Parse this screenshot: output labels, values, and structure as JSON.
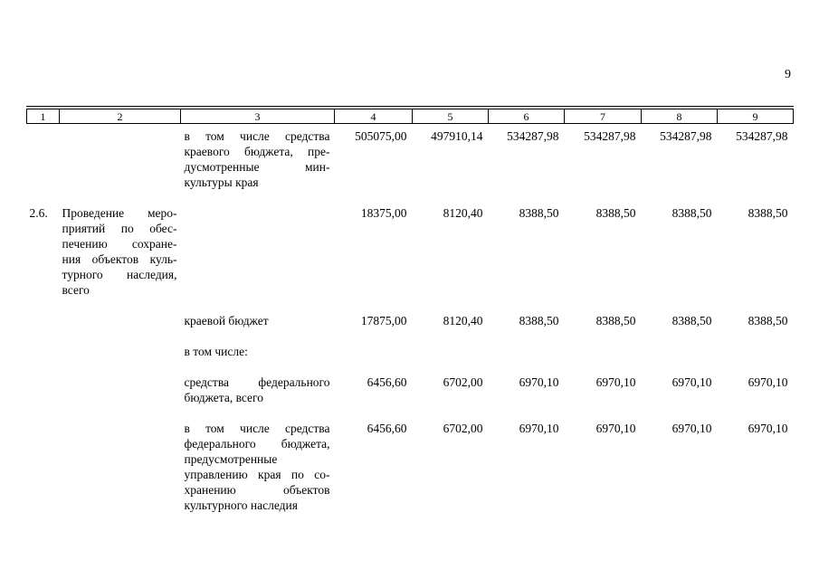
{
  "page": {
    "number": "9"
  },
  "table": {
    "header": [
      "1",
      "2",
      "3",
      "4",
      "5",
      "6",
      "7",
      "8",
      "9"
    ],
    "rows": [
      {
        "num": "",
        "name_lines": [],
        "sub_lines": [
          "в том числе средства",
          "краевого бюджета, пре-",
          "дусмотренные мин-",
          "культуры края"
        ],
        "values": [
          "505075,00",
          "497910,14",
          "534287,98",
          "534287,98",
          "534287,98",
          "534287,98"
        ]
      },
      {
        "num": "2.6.",
        "name_lines": [
          "Проведение меро-",
          "приятий по обес-",
          "печению сохране-",
          "ния объектов куль-",
          "турного наследия,",
          "всего"
        ],
        "sub_lines": [],
        "values": [
          "18375,00",
          "8120,40",
          "8388,50",
          "8388,50",
          "8388,50",
          "8388,50"
        ]
      },
      {
        "num": "",
        "name_lines": [],
        "sub_lines": [
          "краевой бюджет"
        ],
        "values": [
          "17875,00",
          "8120,40",
          "8388,50",
          "8388,50",
          "8388,50",
          "8388,50"
        ]
      },
      {
        "num": "",
        "name_lines": [],
        "sub_lines": [
          "в том числе:"
        ],
        "values": [
          "",
          "",
          "",
          "",
          "",
          ""
        ]
      },
      {
        "num": "",
        "name_lines": [],
        "sub_lines": [
          "средства федерального",
          "бюджета, всего"
        ],
        "values": [
          "6456,60",
          "6702,00",
          "6970,10",
          "6970,10",
          "6970,10",
          "6970,10"
        ]
      },
      {
        "num": "",
        "name_lines": [],
        "sub_lines": [
          "в том числе средства",
          "федерального бюджета,",
          "предусмотренные",
          "управлению края по со-",
          "хранению объектов",
          "культурного наследия"
        ],
        "values": [
          "6456,60",
          "6702,00",
          "6970,10",
          "6970,10",
          "6970,10",
          "6970,10"
        ]
      }
    ]
  }
}
